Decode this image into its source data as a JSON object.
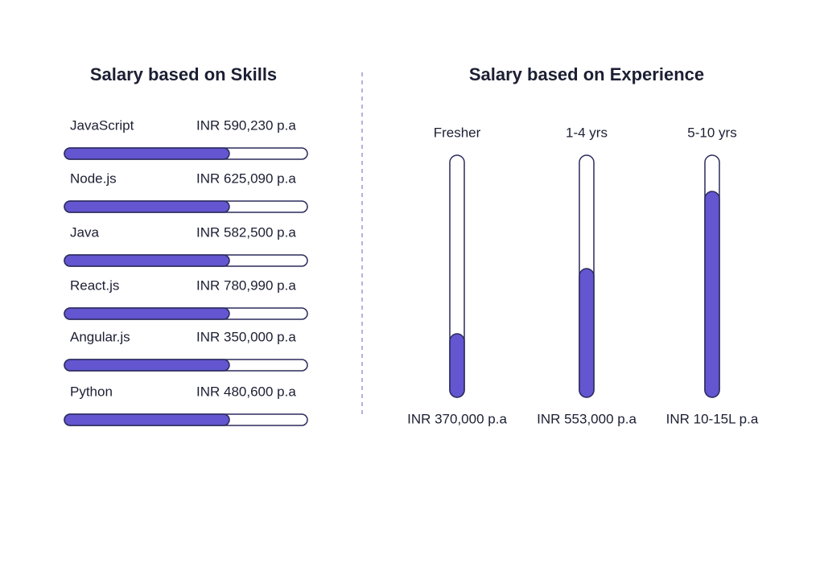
{
  "skills": {
    "title": "Salary based on Skills",
    "rows": [
      {
        "skill": "JavaScript",
        "salary": "INR 590,230 p.a"
      },
      {
        "skill": "Node.js",
        "salary": "INR 625,090 p.a"
      },
      {
        "skill": "Java",
        "salary": "INR 582,500 p.a"
      },
      {
        "skill": "React.js",
        "salary": "INR 780,990 p.a"
      },
      {
        "skill": "Angular.js",
        "salary": "INR 350,000 p.a"
      },
      {
        "skill": "Python",
        "salary": "INR 480,600 p.a"
      }
    ]
  },
  "experience": {
    "title": "Salary based on Experience",
    "columns": [
      {
        "level": "Fresher",
        "salary": "INR 370,000 p.a"
      },
      {
        "level": "1-4 yrs",
        "salary": "INR 553,000 p.a"
      },
      {
        "level": "5-10 yrs",
        "salary": "INR 10-15L p.a"
      }
    ]
  }
}
